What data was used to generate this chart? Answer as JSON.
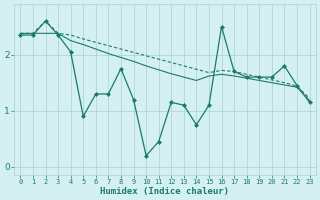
{
  "title": "",
  "xlabel": "Humidex (Indice chaleur)",
  "ylabel": "",
  "bg_color": "#d4f0f0",
  "line_color": "#1a7a6e",
  "grid_color": "#aacfcf",
  "x_data": [
    0,
    1,
    2,
    3,
    4,
    5,
    6,
    7,
    8,
    9,
    10,
    11,
    12,
    13,
    14,
    15,
    16,
    17,
    18,
    19,
    20,
    21,
    22,
    23
  ],
  "y_main": [
    2.35,
    2.35,
    2.6,
    2.35,
    2.05,
    0.9,
    1.3,
    1.3,
    1.75,
    1.2,
    0.2,
    0.45,
    1.15,
    1.1,
    0.75,
    1.1,
    2.5,
    1.7,
    1.6,
    1.6,
    1.6,
    1.8,
    1.45,
    1.15
  ],
  "y_trend1": [
    2.38,
    2.38,
    2.38,
    2.38,
    2.25,
    2.18,
    2.1,
    2.02,
    1.95,
    1.88,
    1.8,
    1.73,
    1.66,
    1.6,
    1.54,
    1.62,
    1.65,
    1.62,
    1.58,
    1.54,
    1.5,
    1.46,
    1.42,
    1.18
  ],
  "y_trend2": [
    2.38,
    2.38,
    2.6,
    2.38,
    2.35,
    2.28,
    2.22,
    2.16,
    2.1,
    2.04,
    1.98,
    1.92,
    1.86,
    1.8,
    1.74,
    1.68,
    1.72,
    1.7,
    1.65,
    1.6,
    1.55,
    1.5,
    1.44,
    1.22
  ],
  "ylim": [
    -0.15,
    2.9
  ],
  "xlim": [
    -0.5,
    23.5
  ],
  "yticks": [
    0,
    1,
    2
  ],
  "xticks": [
    0,
    1,
    2,
    3,
    4,
    5,
    6,
    7,
    8,
    9,
    10,
    11,
    12,
    13,
    14,
    15,
    16,
    17,
    18,
    19,
    20,
    21,
    22,
    23
  ]
}
